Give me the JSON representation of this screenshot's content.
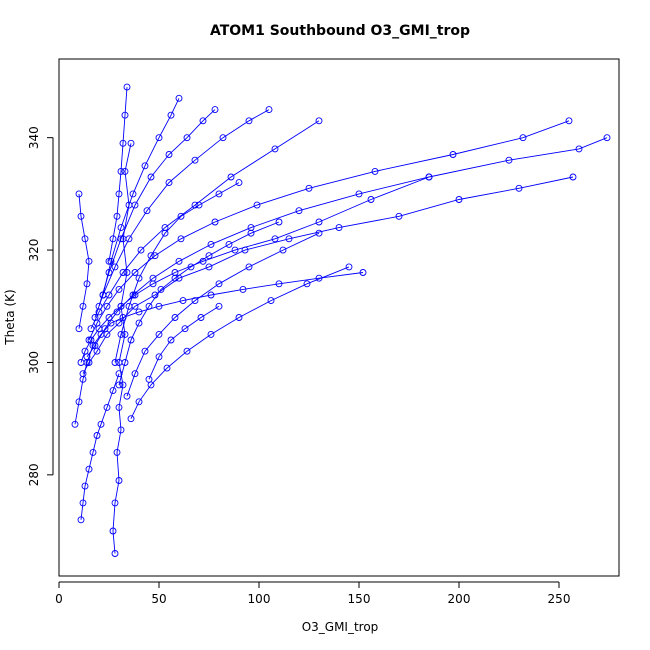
{
  "chart_data": {
    "type": "line",
    "title": "ATOM1 Southbound O3_GMI_trop",
    "xlabel": "O3_GMI_trop",
    "ylabel": "Theta (K)",
    "xlim": [
      0,
      280
    ],
    "ylim": [
      262,
      354
    ],
    "x_ticks": [
      0,
      50,
      100,
      150,
      200,
      250
    ],
    "y_ticks": [
      280,
      300,
      320,
      340
    ],
    "grid": false,
    "legend": "none",
    "marker": "open-circle",
    "color": "#0000ff",
    "series": [
      {
        "x": [
          28,
          27,
          28,
          30,
          29,
          31,
          30,
          32,
          30,
          33,
          31,
          34,
          32,
          35,
          33,
          36
        ],
        "y": [
          266,
          270,
          275,
          279,
          284,
          288,
          292,
          296,
          300,
          305,
          310,
          316,
          322,
          328,
          334,
          339
        ]
      },
      {
        "x": [
          11,
          12,
          13,
          15,
          17,
          19,
          21,
          24,
          27,
          30
        ],
        "y": [
          272,
          275,
          278,
          281,
          284,
          287,
          289,
          292,
          295,
          298
        ]
      },
      {
        "x": [
          8,
          10,
          12,
          14,
          17,
          21,
          26,
          32,
          40,
          50,
          62,
          76,
          92,
          110,
          130,
          152
        ],
        "y": [
          289,
          293,
          297,
          300,
          303,
          305,
          307,
          308,
          309,
          310,
          311,
          312,
          313,
          314,
          315,
          316
        ]
      },
      {
        "x": [
          11,
          13,
          16,
          20,
          25,
          31,
          38,
          47,
          58,
          72,
          88,
          108,
          130,
          156,
          185
        ],
        "y": [
          300,
          302,
          304,
          306,
          308,
          310,
          312,
          314,
          316,
          318,
          320,
          322,
          325,
          329,
          333
        ]
      },
      {
        "x": [
          12,
          15,
          19,
          24,
          30,
          38,
          48,
          60,
          75,
          93,
          115,
          140,
          170,
          200,
          230,
          257
        ],
        "y": [
          298,
          300,
          302,
          305,
          307,
          310,
          312,
          315,
          317,
          320,
          322,
          324,
          326,
          329,
          331,
          333
        ]
      },
      {
        "x": [
          14,
          18,
          23,
          29,
          37,
          47,
          60,
          76,
          96,
          120,
          150,
          185,
          225,
          260,
          274
        ],
        "y": [
          301,
          303,
          306,
          309,
          312,
          315,
          318,
          321,
          324,
          327,
          330,
          333,
          336,
          338,
          340
        ]
      },
      {
        "x": [
          15,
          19,
          24,
          30,
          38,
          48,
          61,
          78,
          99,
          125,
          158,
          197,
          232,
          255
        ],
        "y": [
          304,
          307,
          310,
          313,
          316,
          319,
          322,
          325,
          328,
          331,
          334,
          337,
          340,
          343
        ]
      },
      {
        "x": [
          16,
          20,
          25,
          32,
          41,
          53,
          68,
          86,
          108,
          130
        ],
        "y": [
          306,
          309,
          312,
          316,
          320,
          324,
          328,
          333,
          338,
          343
        ]
      },
      {
        "x": [
          18,
          22,
          28,
          35,
          44,
          55,
          68,
          82,
          95,
          105
        ],
        "y": [
          308,
          312,
          317,
          322,
          327,
          332,
          336,
          340,
          343,
          345
        ]
      },
      {
        "x": [
          20,
          25,
          31,
          38,
          46,
          55,
          64,
          72,
          78
        ],
        "y": [
          310,
          316,
          322,
          328,
          333,
          337,
          340,
          343,
          345
        ]
      },
      {
        "x": [
          22,
          26,
          31,
          37,
          43,
          50,
          56,
          60
        ],
        "y": [
          312,
          318,
          324,
          330,
          335,
          340,
          344,
          347
        ]
      },
      {
        "x": [
          25,
          27,
          29,
          30,
          31,
          32,
          33,
          34
        ],
        "y": [
          318,
          322,
          326,
          330,
          334,
          339,
          344,
          349
        ]
      },
      {
        "x": [
          28,
          31,
          35,
          40,
          46,
          53,
          61,
          70,
          80,
          90
        ],
        "y": [
          300,
          305,
          310,
          315,
          319,
          323,
          326,
          328,
          330,
          332
        ]
      },
      {
        "x": [
          30,
          33,
          36,
          40,
          45,
          51,
          58,
          66,
          75,
          85,
          96,
          110
        ],
        "y": [
          296,
          300,
          304,
          307,
          310,
          313,
          315,
          317,
          319,
          321,
          323,
          325
        ]
      },
      {
        "x": [
          34,
          38,
          43,
          50,
          58,
          68,
          80,
          95,
          112,
          130
        ],
        "y": [
          294,
          298,
          302,
          305,
          308,
          311,
          314,
          317,
          320,
          323
        ]
      },
      {
        "x": [
          36,
          40,
          46,
          54,
          64,
          76,
          90,
          106,
          124,
          145
        ],
        "y": [
          290,
          293,
          296,
          299,
          302,
          305,
          308,
          311,
          314,
          317
        ]
      },
      {
        "x": [
          45,
          50,
          56,
          63,
          71,
          80
        ],
        "y": [
          297,
          301,
          304,
          306,
          308,
          310
        ]
      },
      {
        "x": [
          10,
          12,
          14,
          15,
          13,
          11,
          10
        ],
        "y": [
          306,
          310,
          314,
          318,
          322,
          326,
          330
        ]
      }
    ]
  }
}
